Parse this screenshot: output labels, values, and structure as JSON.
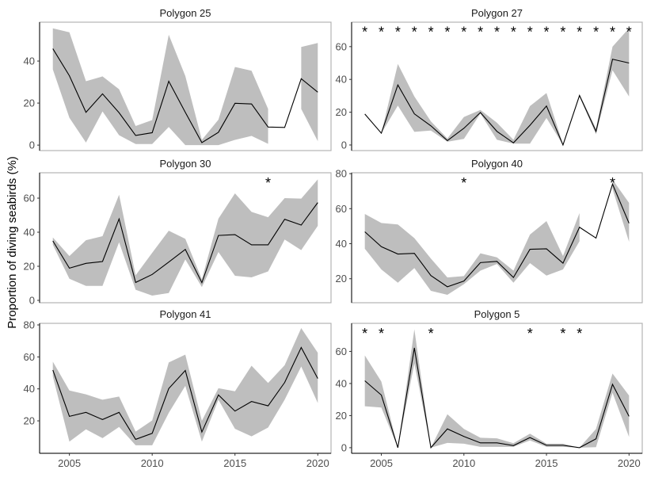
{
  "chart_data": {
    "type": "line",
    "ylabel": "Proportion of diving seabirds (%)",
    "xlabel": "",
    "xlim": [
      2003.2,
      2020.8
    ],
    "x": [
      2004,
      2005,
      2006,
      2007,
      2008,
      2009,
      2010,
      2011,
      2012,
      2013,
      2014,
      2015,
      2016,
      2017,
      2018,
      2019,
      2020
    ],
    "x_ticks": [
      2005,
      2010,
      2015,
      2020
    ],
    "ribbon_color": "#bebebe",
    "line_color": "#000000",
    "grid": false,
    "panels": [
      {
        "title": "Polygon 25",
        "ylim": [
          -2.6,
          58.5
        ],
        "y_ticks": [
          0,
          20,
          40
        ],
        "mean": [
          45.9,
          33,
          15.6,
          24.4,
          15.4,
          4.6,
          5.9,
          30.4,
          15.6,
          1.2,
          6.1,
          19.9,
          19.6,
          8.6,
          8.4,
          31.6,
          25.2
        ],
        "upper": [
          55.6,
          53.7,
          30.4,
          32.7,
          26.6,
          9.1,
          11.9,
          52.5,
          32.9,
          2.5,
          12.1,
          37.2,
          35.4,
          17.2,
          null,
          46.7,
          48.6
        ],
        "lower": [
          36,
          13,
          1.2,
          16,
          4.7,
          0.5,
          0.5,
          8.6,
          0,
          0,
          0,
          2.5,
          4.4,
          0.6,
          null,
          17.2,
          1.9
        ],
        "stars": []
      },
      {
        "title": "Polygon 27",
        "ylim": [
          -3.4,
          74.9
        ],
        "y_ticks": [
          0,
          20,
          40,
          60
        ],
        "mean": [
          18.9,
          7.2,
          36.6,
          19,
          11.7,
          2.7,
          10.2,
          19.8,
          8.3,
          1.3,
          12,
          23.8,
          0,
          30.2,
          8.3,
          52.3,
          50
        ],
        "upper": [
          null,
          7.2,
          49.4,
          29.6,
          14.4,
          4,
          17.1,
          21.4,
          13.6,
          3.2,
          23.7,
          31.7,
          0.5,
          31,
          10,
          60,
          71.2
        ],
        "lower": [
          null,
          7.2,
          24,
          8,
          8.8,
          2,
          3.7,
          19.2,
          3.2,
          0.8,
          0.8,
          16.5,
          0,
          29.5,
          6.5,
          45.6,
          29.6
        ],
        "stars": [
          2004,
          2005,
          2006,
          2007,
          2008,
          2009,
          2010,
          2011,
          2012,
          2013,
          2014,
          2015,
          2016,
          2017,
          2018,
          2019,
          2020
        ]
      },
      {
        "title": "Polygon 30",
        "ylim": [
          -1.4,
          74.9
        ],
        "y_ticks": [
          0,
          20,
          40,
          60
        ],
        "mean": [
          34.9,
          18.9,
          21.7,
          22.8,
          47.8,
          10.5,
          15.2,
          22.5,
          29.9,
          10.4,
          38.1,
          38.6,
          32.6,
          32.6,
          47.6,
          44.2,
          57.4
        ],
        "upper": [
          36.9,
          26,
          35.3,
          37.7,
          62,
          14.7,
          27.9,
          40.9,
          36.1,
          12.4,
          48,
          62.8,
          51.9,
          48.8,
          60,
          59.7,
          71
        ],
        "lower": [
          32.6,
          12.7,
          8.5,
          8.5,
          34.1,
          6.2,
          2.8,
          4.3,
          24,
          7.8,
          28.4,
          14.4,
          13.5,
          17,
          35.7,
          29.5,
          43.7
        ],
        "stars": [
          2017
        ]
      },
      {
        "title": "Polygon 40",
        "ylim": [
          6.3,
          80.5
        ],
        "y_ticks": [
          20,
          40,
          60,
          80
        ],
        "mean": [
          46.8,
          38.3,
          34.1,
          34.5,
          21.8,
          15.4,
          18.7,
          29.2,
          29.9,
          20.7,
          36.8,
          37.1,
          28.9,
          49.4,
          43.2,
          74,
          51.7
        ],
        "upper": [
          57,
          51.8,
          51,
          43.2,
          31.5,
          20.7,
          21.5,
          34.5,
          32.2,
          24.6,
          45.2,
          52.9,
          33,
          57.5,
          null,
          76.6,
          63.3
        ],
        "lower": [
          37.1,
          25.3,
          17.7,
          26.1,
          13.1,
          10.8,
          16.9,
          24.6,
          28.4,
          17.7,
          28.9,
          21.8,
          25.3,
          41.4,
          null,
          71.3,
          41.1
        ],
        "stars": [
          2010,
          2019
        ]
      },
      {
        "title": "Polygon 41",
        "ylim": [
          -0.3,
          81
        ],
        "y_ticks": [
          20,
          40,
          60,
          80
        ],
        "mean": [
          51.8,
          22.8,
          25.3,
          20.8,
          25.3,
          8.4,
          12.2,
          40.2,
          51.5,
          13,
          36.2,
          26.1,
          32.1,
          29.4,
          44,
          65.9,
          46.5
        ],
        "upper": [
          57,
          39,
          36.6,
          33.2,
          35.2,
          13.3,
          20.3,
          56.5,
          61.4,
          20,
          40.4,
          38.5,
          54.5,
          43.7,
          54.8,
          78,
          62.6
        ],
        "lower": [
          47.8,
          7,
          14.7,
          9.2,
          16.2,
          4.7,
          4.7,
          25,
          41.9,
          7,
          33.2,
          15,
          10.3,
          15.8,
          33.2,
          54,
          31.2
        ],
        "stars": []
      },
      {
        "title": "Polygon 5",
        "ylim": [
          -3.5,
          77.5
        ],
        "y_ticks": [
          0,
          20,
          40,
          60
        ],
        "mean": [
          41.7,
          32.8,
          0,
          62.2,
          0,
          11.7,
          7,
          3,
          3,
          1.3,
          6.3,
          1.5,
          1.5,
          0,
          5.5,
          39.5,
          19.5
        ],
        "upper": [
          57.5,
          41.2,
          0,
          73.8,
          0,
          20.8,
          11.7,
          6.2,
          5.8,
          2.8,
          8.7,
          2.5,
          2.5,
          0,
          11.7,
          46.2,
          32.5
        ],
        "lower": [
          25.8,
          25,
          0,
          52.5,
          0,
          3,
          2.5,
          0.5,
          0.5,
          0.5,
          4.5,
          0.5,
          0.5,
          0,
          0.3,
          34.2,
          6.7
        ],
        "stars": [
          2004,
          2005,
          2008,
          2014,
          2016,
          2017
        ]
      }
    ]
  }
}
